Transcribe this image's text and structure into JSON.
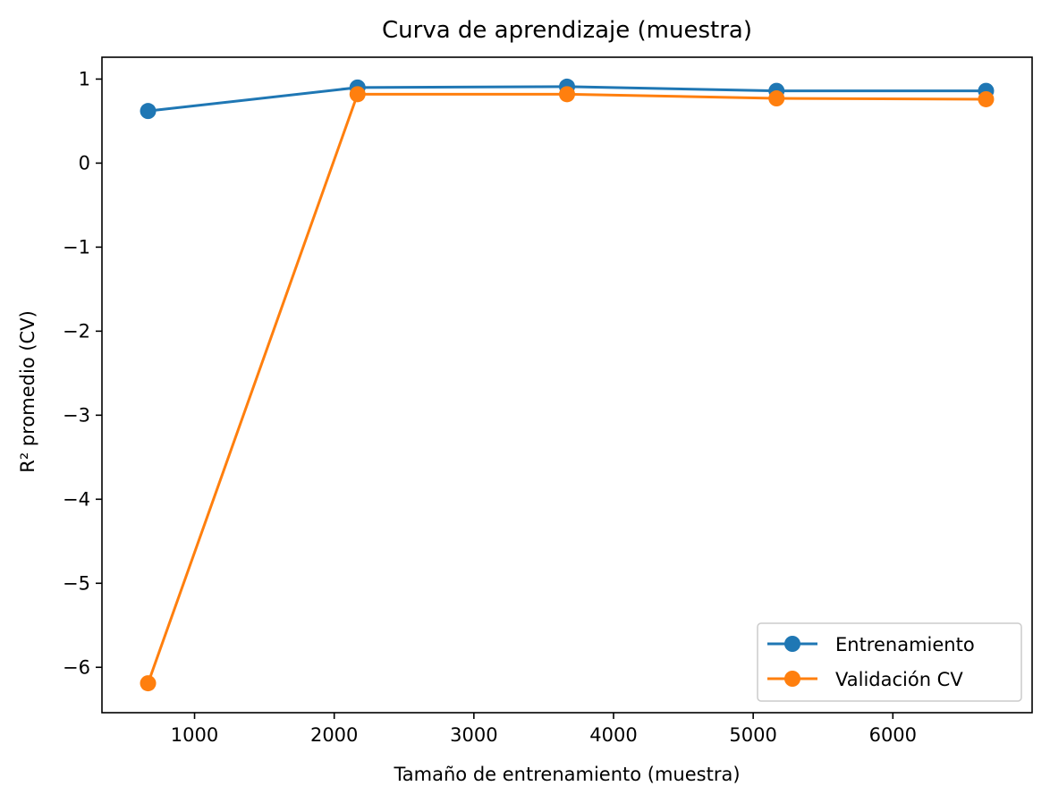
{
  "chart_data": {
    "type": "line",
    "title": "Curva de aprendizaje (muestra)",
    "xlabel": "Tamaño de entrenamiento (muestra)",
    "ylabel": "R² promedio (CV)",
    "x": [
      667,
      2167,
      3667,
      5167,
      6667
    ],
    "xlim": [
      337,
      6997
    ],
    "ylim": [
      -6.54,
      1.26
    ],
    "xticks": [
      1000,
      2000,
      3000,
      4000,
      5000,
      6000
    ],
    "xtick_labels": [
      "1000",
      "2000",
      "3000",
      "4000",
      "5000",
      "6000"
    ],
    "yticks": [
      1,
      0,
      -1,
      -2,
      -3,
      -4,
      -5,
      -6
    ],
    "ytick_labels": [
      "1",
      "0",
      "−1",
      "−2",
      "−3",
      "−4",
      "−5",
      "−6"
    ],
    "grid": false,
    "legend_position": "lower-right",
    "series": [
      {
        "name": "Entrenamiento",
        "color": "#1f77b4",
        "marker": "circle",
        "values": [
          0.62,
          0.9,
          0.91,
          0.86,
          0.86
        ]
      },
      {
        "name": "Validación CV",
        "color": "#ff7f0e",
        "marker": "circle",
        "values": [
          -6.19,
          0.82,
          0.82,
          0.77,
          0.76
        ]
      }
    ]
  }
}
